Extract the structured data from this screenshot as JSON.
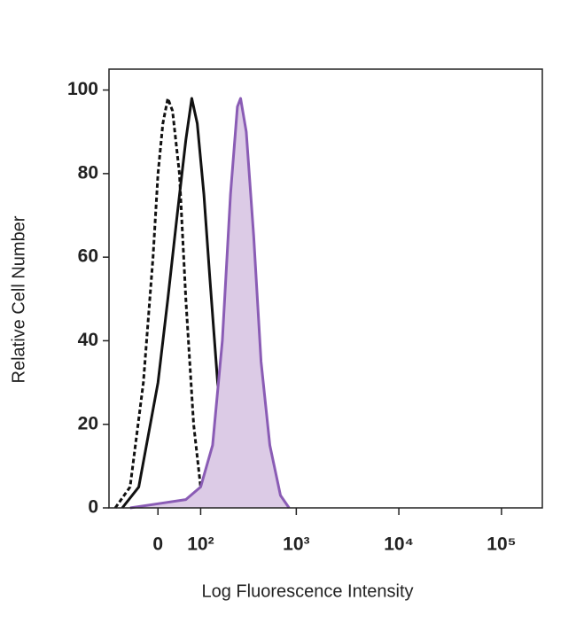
{
  "chart_data": {
    "type": "histogram-overlay",
    "x_label": "Log Fluorescence Intensity",
    "y_label": "Relative Cell Number",
    "xscale": "asinh",
    "xscale_width": 90,
    "xlim": [
      -120,
      250000
    ],
    "xticks": [
      0,
      {
        "value": 100,
        "label": "10²"
      },
      {
        "value": 1000,
        "label": "10³"
      },
      {
        "value": 10000,
        "label": "10⁴"
      },
      {
        "value": 100000,
        "label": "10⁵"
      }
    ],
    "ylim": [
      0,
      105
    ],
    "yticks": [
      0,
      20,
      40,
      60,
      80,
      100
    ],
    "series": [
      {
        "color": "#111111",
        "style": "dashed",
        "fill": null,
        "x": [
          -100,
          -60,
          -30,
          -10,
          0,
          10,
          20,
          30,
          45,
          60,
          80,
          100,
          130
        ],
        "values": [
          0,
          5,
          30,
          60,
          80,
          92,
          98,
          95,
          80,
          50,
          20,
          5,
          0
        ]
      },
      {
        "color": "#111111",
        "style": "solid",
        "fill": null,
        "x": [
          -80,
          -40,
          0,
          20,
          40,
          60,
          75,
          90,
          110,
          130,
          160,
          200,
          250
        ],
        "values": [
          0,
          5,
          30,
          50,
          70,
          88,
          98,
          92,
          75,
          55,
          30,
          8,
          0
        ]
      },
      {
        "color": "#8a5cb5",
        "style": "solid",
        "fill": "#dccbe6",
        "x": [
          -60,
          0,
          60,
          100,
          140,
          180,
          220,
          260,
          280,
          320,
          380,
          450,
          550,
          700,
          850
        ],
        "values": [
          0,
          1,
          2,
          5,
          15,
          40,
          75,
          96,
          98,
          90,
          65,
          35,
          15,
          3,
          0
        ]
      }
    ]
  }
}
